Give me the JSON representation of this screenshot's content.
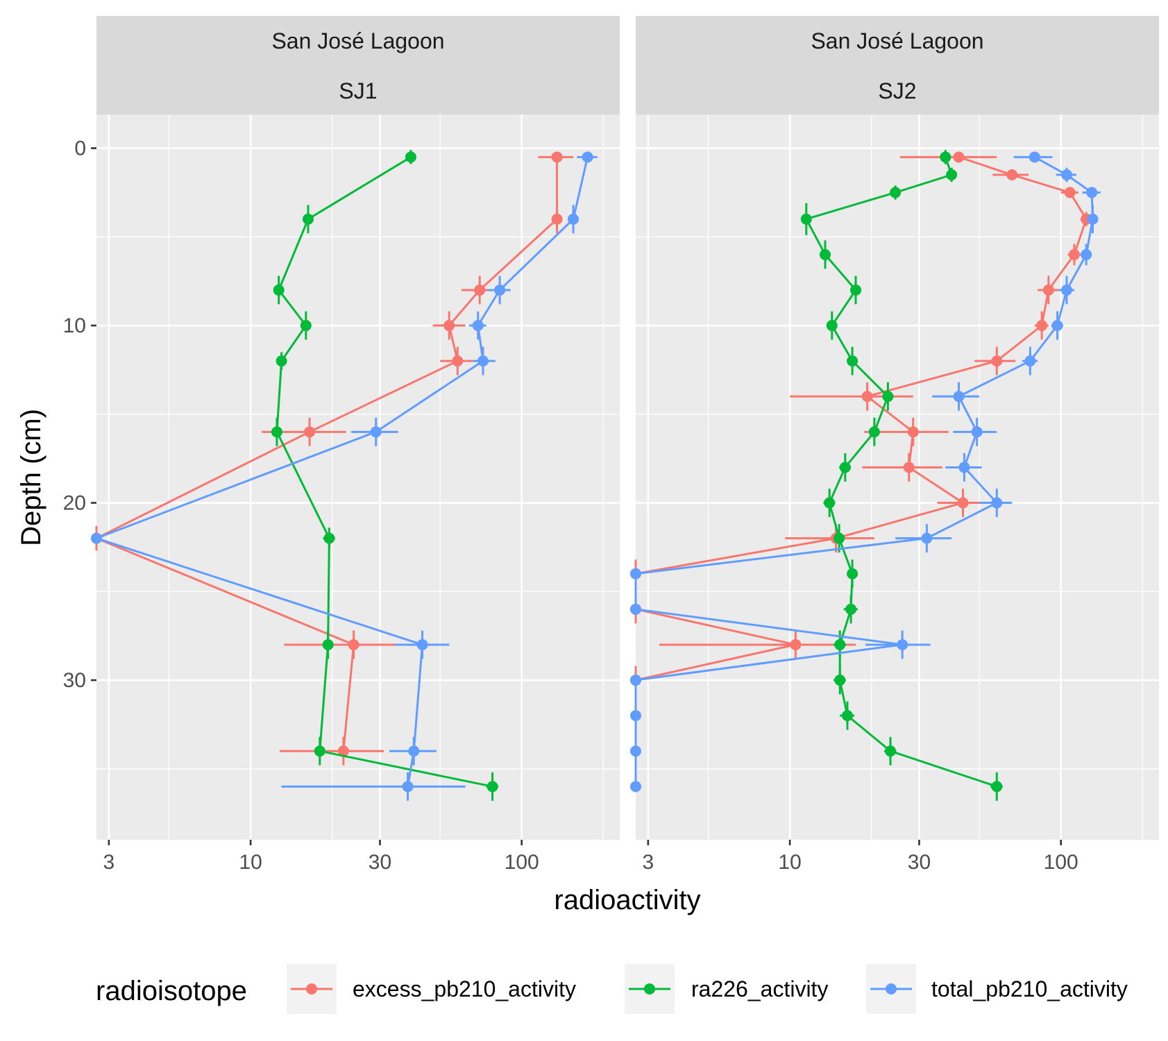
{
  "chart_data": {
    "type": "line",
    "xlabel": "radioactivity",
    "ylabel": "Depth (cm)",
    "x_scale": "log10",
    "xlim": [
      2.7,
      230
    ],
    "ylim": [
      -1.9,
      39
    ],
    "y_reversed": true,
    "x_ticks": [
      3,
      10,
      30,
      100
    ],
    "x_tick_labels": [
      "3",
      "10",
      "30",
      "100"
    ],
    "y_ticks": [
      0,
      10,
      20,
      30
    ],
    "y_tick_labels": [
      "0",
      "10",
      "20",
      "30"
    ],
    "grid": true,
    "legend": {
      "title": "radioisotope",
      "position": "bottom",
      "entries": [
        {
          "name": "excess_pb210_activity",
          "color": "#F8766D"
        },
        {
          "name": "ra226_activity",
          "color": "#00BA38"
        },
        {
          "name": "total_pb210_activity",
          "color": "#619CFF"
        }
      ]
    },
    "panels": [
      {
        "strip_top": "San José Lagoon",
        "strip_bottom": "SJ1",
        "series": [
          {
            "name": "excess_pb210_activity",
            "color": "#F8766D",
            "points": [
              {
                "x": 135,
                "y": 0.5,
                "xmin": 115,
                "xmax": 155,
                "ymin": 0.5,
                "ymax": 0.5
              },
              {
                "x": 135,
                "y": 4,
                "xmin": 135,
                "xmax": 135,
                "ymin": 3.2,
                "ymax": 4.8
              },
              {
                "x": 70,
                "y": 8,
                "xmin": 60,
                "xmax": 80,
                "ymin": 7.2,
                "ymax": 8.8
              },
              {
                "x": 54,
                "y": 10,
                "xmin": 47,
                "xmax": 62,
                "ymin": 9.2,
                "ymax": 10.8
              },
              {
                "x": 58,
                "y": 12,
                "xmin": 50,
                "xmax": 66,
                "ymin": 11.2,
                "ymax": 12.8
              },
              {
                "x": 16.5,
                "y": 16,
                "xmin": 11,
                "xmax": 22.5,
                "ymin": 15.2,
                "ymax": 16.8
              },
              {
                "x": 2.7,
                "y": 22,
                "xmin": 2.7,
                "xmax": 2.7,
                "ymin": 21.3,
                "ymax": 22.7
              },
              {
                "x": 24,
                "y": 28,
                "xmin": 13.3,
                "xmax": 34.5,
                "ymin": 27.2,
                "ymax": 28.8
              },
              {
                "x": 22,
                "y": 34,
                "xmin": 12.8,
                "xmax": 31,
                "ymin": 33.2,
                "ymax": 34.8
              }
            ]
          },
          {
            "name": "ra226_activity",
            "color": "#00BA38",
            "points": [
              {
                "x": 39,
                "y": 0.5,
                "xmin": 39,
                "xmax": 39,
                "ymin": 0.1,
                "ymax": 0.9
              },
              {
                "x": 16.3,
                "y": 4,
                "xmin": 16.3,
                "xmax": 16.3,
                "ymin": 3.2,
                "ymax": 4.8
              },
              {
                "x": 12.7,
                "y": 8,
                "xmin": 12.7,
                "xmax": 12.7,
                "ymin": 7.2,
                "ymax": 8.8
              },
              {
                "x": 16,
                "y": 10,
                "xmin": 16,
                "xmax": 16,
                "ymin": 9.2,
                "ymax": 10.8
              },
              {
                "x": 13,
                "y": 12,
                "xmin": 13,
                "xmax": 13,
                "ymin": 11.5,
                "ymax": 12.5
              },
              {
                "x": 12.5,
                "y": 16,
                "xmin": 12.5,
                "xmax": 12.5,
                "ymin": 15.2,
                "ymax": 16.8
              },
              {
                "x": 19.5,
                "y": 22,
                "xmin": 18.5,
                "xmax": 20.5,
                "ymin": 21.4,
                "ymax": 22.6
              },
              {
                "x": 19.3,
                "y": 28,
                "xmin": 19.3,
                "xmax": 19.3,
                "ymin": 27.2,
                "ymax": 28.8
              },
              {
                "x": 18,
                "y": 34,
                "xmin": 17.5,
                "xmax": 18.5,
                "ymin": 33.2,
                "ymax": 34.8
              },
              {
                "x": 78,
                "y": 36,
                "xmin": 74,
                "xmax": 82,
                "ymin": 35.2,
                "ymax": 36.8
              }
            ]
          },
          {
            "name": "total_pb210_activity",
            "color": "#619CFF",
            "points": [
              {
                "x": 175,
                "y": 0.5,
                "xmin": 160,
                "xmax": 190,
                "ymin": 0.5,
                "ymax": 0.5
              },
              {
                "x": 155,
                "y": 4,
                "xmin": 155,
                "xmax": 155,
                "ymin": 3.2,
                "ymax": 4.8
              },
              {
                "x": 83,
                "y": 8,
                "xmin": 75,
                "xmax": 91,
                "ymin": 7.2,
                "ymax": 8.8
              },
              {
                "x": 69,
                "y": 10,
                "xmin": 64,
                "xmax": 74,
                "ymin": 9.2,
                "ymax": 10.8
              },
              {
                "x": 72,
                "y": 12,
                "xmin": 66,
                "xmax": 80,
                "ymin": 11.2,
                "ymax": 12.8
              },
              {
                "x": 29,
                "y": 16,
                "xmin": 23.5,
                "xmax": 35,
                "ymin": 15.2,
                "ymax": 16.8
              },
              {
                "x": 2.7,
                "y": 22,
                "xmin": 2.7,
                "xmax": 2.7,
                "ymin": 22,
                "ymax": 22
              },
              {
                "x": 43,
                "y": 28,
                "xmin": 34,
                "xmax": 54,
                "ymin": 27.2,
                "ymax": 28.8
              },
              {
                "x": 40,
                "y": 34,
                "xmin": 32.5,
                "xmax": 48.5,
                "ymin": 33.2,
                "ymax": 34.8
              },
              {
                "x": 38,
                "y": 36,
                "xmin": 13,
                "xmax": 62,
                "ymin": 35.2,
                "ymax": 36.8
              }
            ]
          }
        ]
      },
      {
        "strip_top": "San José Lagoon",
        "strip_bottom": "SJ2",
        "series": [
          {
            "name": "excess_pb210_activity",
            "color": "#F8766D",
            "points": [
              {
                "x": 42,
                "y": 0.5,
                "xmin": 25.5,
                "xmax": 58,
                "ymin": 0.2,
                "ymax": 0.8
              },
              {
                "x": 66,
                "y": 1.5,
                "xmin": 56,
                "xmax": 76,
                "ymin": 1.2,
                "ymax": 1.8
              },
              {
                "x": 108,
                "y": 2.5,
                "xmin": 100,
                "xmax": 116,
                "ymin": 2.2,
                "ymax": 2.8
              },
              {
                "x": 124,
                "y": 4,
                "xmin": 118,
                "xmax": 130,
                "ymin": 3.6,
                "ymax": 4.4
              },
              {
                "x": 112,
                "y": 6,
                "xmin": 106,
                "xmax": 118,
                "ymin": 5.4,
                "ymax": 6.6
              },
              {
                "x": 90,
                "y": 8,
                "xmin": 82,
                "xmax": 98,
                "ymin": 7.2,
                "ymax": 8.8
              },
              {
                "x": 85,
                "y": 10,
                "xmin": 80,
                "xmax": 90,
                "ymin": 9.2,
                "ymax": 10.8
              },
              {
                "x": 58,
                "y": 12,
                "xmin": 48,
                "xmax": 68,
                "ymin": 11.2,
                "ymax": 12.8
              },
              {
                "x": 19.3,
                "y": 14,
                "xmin": 10,
                "xmax": 28.5,
                "ymin": 13.2,
                "ymax": 14.8
              },
              {
                "x": 28.5,
                "y": 16,
                "xmin": 18.8,
                "xmax": 38.5,
                "ymin": 15.2,
                "ymax": 16.8
              },
              {
                "x": 27.5,
                "y": 18,
                "xmin": 18.5,
                "xmax": 36.5,
                "ymin": 17.2,
                "ymax": 18.8
              },
              {
                "x": 43.5,
                "y": 20,
                "xmin": 35,
                "xmax": 52,
                "ymin": 19.2,
                "ymax": 20.8
              },
              {
                "x": 14.8,
                "y": 22,
                "xmin": 9.6,
                "xmax": 20.5,
                "ymin": 21.2,
                "ymax": 22.8
              },
              {
                "x": 2.7,
                "y": 24,
                "xmin": 2.7,
                "xmax": 2.7,
                "ymin": 23.2,
                "ymax": 24.8
              },
              {
                "x": 2.7,
                "y": 26,
                "xmin": 2.7,
                "xmax": 2.7,
                "ymin": 25.2,
                "ymax": 26.8
              },
              {
                "x": 10.5,
                "y": 28,
                "xmin": 3.3,
                "xmax": 17.5,
                "ymin": 27.2,
                "ymax": 28.8
              },
              {
                "x": 2.7,
                "y": 30,
                "xmin": 2.7,
                "xmax": 2.7,
                "ymin": 29.2,
                "ymax": 30.8
              }
            ]
          },
          {
            "name": "ra226_activity",
            "color": "#00BA38",
            "points": [
              {
                "x": 37.5,
                "y": 0.5,
                "xmin": 36,
                "xmax": 39,
                "ymin": 0.1,
                "ymax": 0.9
              },
              {
                "x": 39.5,
                "y": 1.5,
                "xmin": 38.5,
                "xmax": 40.5,
                "ymin": 1.1,
                "ymax": 1.9
              },
              {
                "x": 24.5,
                "y": 2.5,
                "xmin": 23.5,
                "xmax": 25.5,
                "ymin": 2.1,
                "ymax": 2.9
              },
              {
                "x": 11.5,
                "y": 4,
                "xmin": 11.5,
                "xmax": 11.5,
                "ymin": 3.1,
                "ymax": 4.9
              },
              {
                "x": 13.5,
                "y": 6,
                "xmin": 13.5,
                "xmax": 13.5,
                "ymin": 5.2,
                "ymax": 6.8
              },
              {
                "x": 17.5,
                "y": 8,
                "xmin": 17.5,
                "xmax": 17.5,
                "ymin": 7.2,
                "ymax": 8.8
              },
              {
                "x": 14.3,
                "y": 10,
                "xmin": 14.3,
                "xmax": 14.3,
                "ymin": 9.2,
                "ymax": 10.8
              },
              {
                "x": 17,
                "y": 12,
                "xmin": 16.5,
                "xmax": 17.5,
                "ymin": 11.2,
                "ymax": 12.8
              },
              {
                "x": 23,
                "y": 14,
                "xmin": 22,
                "xmax": 24,
                "ymin": 13.2,
                "ymax": 14.8
              },
              {
                "x": 20.5,
                "y": 16,
                "xmin": 19.8,
                "xmax": 21.2,
                "ymin": 15.2,
                "ymax": 16.8
              },
              {
                "x": 16,
                "y": 18,
                "xmin": 15.2,
                "xmax": 16.8,
                "ymin": 17.2,
                "ymax": 18.8
              },
              {
                "x": 14,
                "y": 20,
                "xmin": 13.3,
                "xmax": 14.7,
                "ymin": 19.2,
                "ymax": 20.8
              },
              {
                "x": 15.2,
                "y": 22,
                "xmin": 15.2,
                "xmax": 15.2,
                "ymin": 21.2,
                "ymax": 22.8
              },
              {
                "x": 17,
                "y": 24,
                "xmin": 16.3,
                "xmax": 17.7,
                "ymin": 23.2,
                "ymax": 24.8
              },
              {
                "x": 16.8,
                "y": 26,
                "xmin": 15.8,
                "xmax": 17.8,
                "ymin": 25.2,
                "ymax": 26.8
              },
              {
                "x": 15.3,
                "y": 28,
                "xmin": 14.5,
                "xmax": 16.1,
                "ymin": 27.2,
                "ymax": 28.8
              },
              {
                "x": 15.3,
                "y": 30,
                "xmin": 14.5,
                "xmax": 16.1,
                "ymin": 29.2,
                "ymax": 30.8
              },
              {
                "x": 16.3,
                "y": 32,
                "xmin": 15.3,
                "xmax": 17.3,
                "ymin": 31.2,
                "ymax": 32.8
              },
              {
                "x": 23.5,
                "y": 34,
                "xmin": 22.3,
                "xmax": 24.7,
                "ymin": 33.2,
                "ymax": 34.8
              },
              {
                "x": 58,
                "y": 36,
                "xmin": 55,
                "xmax": 61,
                "ymin": 35.2,
                "ymax": 36.8
              }
            ]
          },
          {
            "name": "total_pb210_activity",
            "color": "#619CFF",
            "points": [
              {
                "x": 80,
                "y": 0.5,
                "xmin": 67,
                "xmax": 93,
                "ymin": 0.5,
                "ymax": 0.5
              },
              {
                "x": 105,
                "y": 1.5,
                "xmin": 96,
                "xmax": 114,
                "ymin": 1.1,
                "ymax": 1.9
              },
              {
                "x": 130,
                "y": 2.5,
                "xmin": 120,
                "xmax": 140,
                "ymin": 2.2,
                "ymax": 2.8
              },
              {
                "x": 131,
                "y": 4,
                "xmin": 126,
                "xmax": 136,
                "ymin": 3.2,
                "ymax": 4.8
              },
              {
                "x": 124,
                "y": 6,
                "xmin": 118,
                "xmax": 130,
                "ymin": 5.4,
                "ymax": 6.6
              },
              {
                "x": 105,
                "y": 8,
                "xmin": 98,
                "xmax": 112,
                "ymin": 7.2,
                "ymax": 8.8
              },
              {
                "x": 97,
                "y": 10,
                "xmin": 92,
                "xmax": 102,
                "ymin": 9.2,
                "ymax": 10.8
              },
              {
                "x": 77,
                "y": 12,
                "xmin": 72,
                "xmax": 82,
                "ymin": 11.2,
                "ymax": 12.8
              },
              {
                "x": 42,
                "y": 14,
                "xmin": 33.5,
                "xmax": 50,
                "ymin": 13.2,
                "ymax": 14.8
              },
              {
                "x": 49,
                "y": 16,
                "xmin": 40,
                "xmax": 58,
                "ymin": 15.2,
                "ymax": 16.8
              },
              {
                "x": 44,
                "y": 18,
                "xmin": 37.5,
                "xmax": 51,
                "ymin": 17.2,
                "ymax": 18.8
              },
              {
                "x": 58,
                "y": 20,
                "xmin": 50,
                "xmax": 66,
                "ymin": 19.2,
                "ymax": 20.8
              },
              {
                "x": 32,
                "y": 22,
                "xmin": 24.5,
                "xmax": 39.5,
                "ymin": 21.2,
                "ymax": 22.8
              },
              {
                "x": 2.7,
                "y": 24,
                "xmin": 2.7,
                "xmax": 2.7,
                "ymin": 24,
                "ymax": 24
              },
              {
                "x": 2.7,
                "y": 26,
                "xmin": 2.7,
                "xmax": 2.7,
                "ymin": 26,
                "ymax": 26
              },
              {
                "x": 26,
                "y": 28,
                "xmin": 19,
                "xmax": 33,
                "ymin": 27.2,
                "ymax": 28.8
              },
              {
                "x": 2.7,
                "y": 30,
                "xmin": 2.7,
                "xmax": 2.7,
                "ymin": 30,
                "ymax": 30
              },
              {
                "x": 2.7,
                "y": 32,
                "xmin": 2.7,
                "xmax": 2.7,
                "ymin": 32,
                "ymax": 32
              },
              {
                "x": 2.7,
                "y": 34,
                "xmin": 2.7,
                "xmax": 2.7,
                "ymin": 34,
                "ymax": 34
              },
              {
                "x": 2.7,
                "y": 36,
                "xmin": 2.7,
                "xmax": 2.7,
                "ymin": 36,
                "ymax": 36
              }
            ]
          }
        ]
      }
    ]
  }
}
